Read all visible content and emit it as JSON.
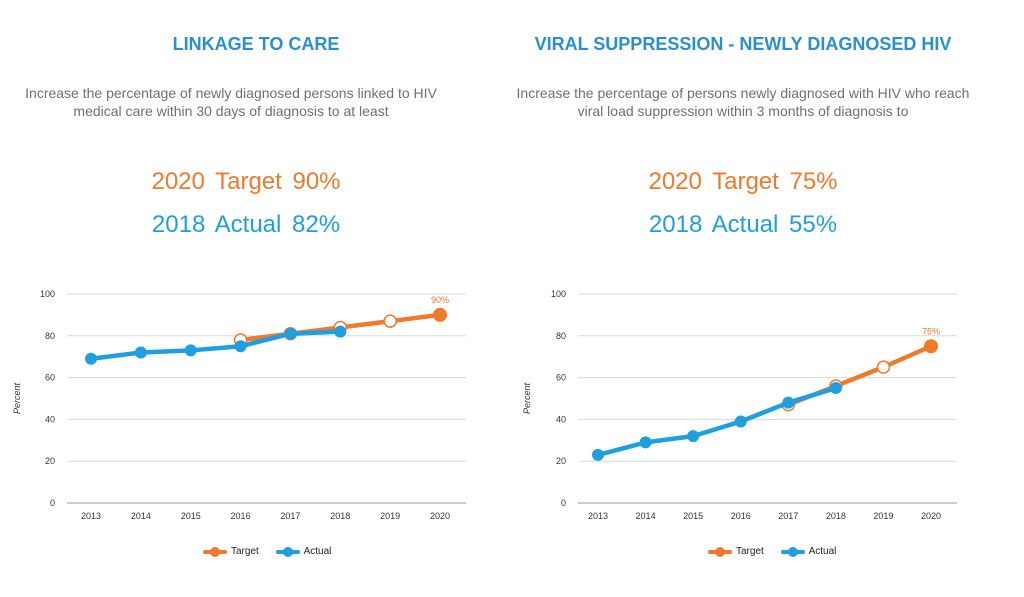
{
  "colors": {
    "target": "#f07a2b",
    "actual": "#1e9fe0",
    "title": "#2a8fd0",
    "grid": "#d9d9d9"
  },
  "panels": [
    {
      "title": "LINKAGE TO CARE",
      "description": "Increase the percentage of newly diagnosed persons linked to HIV medical care within 30 days of diagnosis to at least",
      "target_stat": "2020 Target 90%",
      "actual_stat": "2018 Actual 82%"
    },
    {
      "title": "VIRAL SUPPRESSION - NEWLY DIAGNOSED HIV",
      "description": "Increase the percentage of persons newly diagnosed with HIV who reach viral load suppression within 3 months of diagnosis to",
      "target_stat": "2020 Target 75%",
      "actual_stat": "2018 Actual 55%"
    }
  ],
  "chart_data": [
    {
      "type": "line",
      "title": "",
      "xlabel": "",
      "ylabel": "Percent",
      "categories": [
        "2013",
        "2014",
        "2015",
        "2016",
        "2017",
        "2018",
        "2019",
        "2020"
      ],
      "ylim": [
        0,
        100
      ],
      "yticks": [
        0,
        20,
        40,
        60,
        80,
        100
      ],
      "grid": true,
      "legend": "bottom-center",
      "series": [
        {
          "name": "Target",
          "values": [
            null,
            null,
            null,
            78,
            81,
            84,
            87,
            90
          ]
        },
        {
          "name": "Actual",
          "values": [
            69,
            72,
            73,
            75,
            81,
            82,
            null,
            null
          ]
        }
      ],
      "annotations": [
        {
          "category": "2020",
          "series": "Target",
          "text": "90%"
        }
      ]
    },
    {
      "type": "line",
      "title": "",
      "xlabel": "",
      "ylabel": "Percent",
      "categories": [
        "2013",
        "2014",
        "2015",
        "2016",
        "2017",
        "2018",
        "2019",
        "2020"
      ],
      "ylim": [
        0,
        100
      ],
      "yticks": [
        0,
        20,
        40,
        60,
        80,
        100
      ],
      "grid": true,
      "legend": "bottom-center",
      "series": [
        {
          "name": "Target",
          "values": [
            null,
            null,
            null,
            null,
            47,
            56,
            65,
            75
          ]
        },
        {
          "name": "Actual",
          "values": [
            23,
            29,
            32,
            39,
            48,
            55,
            null,
            null
          ]
        }
      ],
      "annotations": [
        {
          "category": "2020",
          "series": "Target",
          "text": "75%"
        }
      ]
    }
  ]
}
